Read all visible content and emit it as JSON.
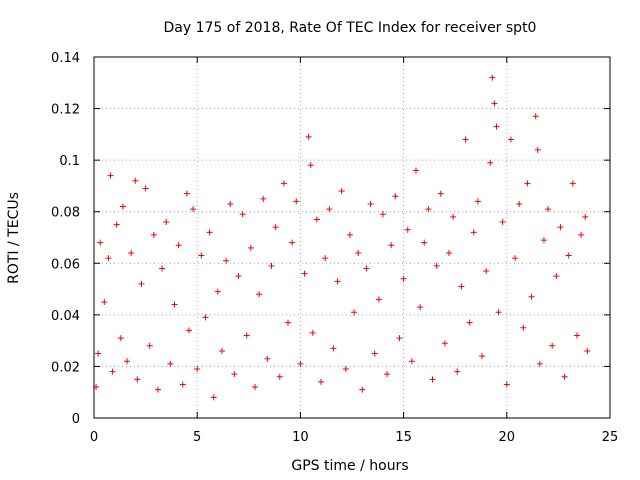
{
  "chart_data": {
    "type": "scatter",
    "title": "Day 175 of 2018, Rate Of TEC Index for receiver spt0",
    "xlabel": "GPS time / hours",
    "ylabel": "ROTI / TECUs",
    "xlim": [
      0,
      25
    ],
    "ylim": [
      0,
      0.14
    ],
    "xticks": [
      0,
      5,
      10,
      15,
      20,
      25
    ],
    "yticks": [
      0,
      0.02,
      0.04,
      0.06,
      0.08,
      0.1,
      0.12,
      0.14
    ],
    "xtick_labels": [
      "0",
      "5",
      "10",
      "15",
      "20",
      "25"
    ],
    "ytick_labels": [
      "0",
      "0.02",
      "0.04",
      "0.06",
      "0.08",
      "0.1",
      "0.12",
      "0.14"
    ],
    "grid": true,
    "marker": "+",
    "color": "#ff0000",
    "series": [
      {
        "name": "ROTI",
        "points": [
          [
            0.1,
            0.012
          ],
          [
            0.2,
            0.025
          ],
          [
            0.3,
            0.068
          ],
          [
            0.5,
            0.045
          ],
          [
            0.7,
            0.062
          ],
          [
            0.8,
            0.094
          ],
          [
            0.9,
            0.018
          ],
          [
            1.1,
            0.075
          ],
          [
            1.3,
            0.031
          ],
          [
            1.4,
            0.082
          ],
          [
            1.6,
            0.022
          ],
          [
            1.8,
            0.064
          ],
          [
            2.0,
            0.092
          ],
          [
            2.1,
            0.015
          ],
          [
            2.3,
            0.052
          ],
          [
            2.5,
            0.089
          ],
          [
            2.7,
            0.028
          ],
          [
            2.9,
            0.071
          ],
          [
            3.1,
            0.011
          ],
          [
            3.3,
            0.058
          ],
          [
            3.5,
            0.076
          ],
          [
            3.7,
            0.021
          ],
          [
            3.9,
            0.044
          ],
          [
            4.1,
            0.067
          ],
          [
            4.3,
            0.013
          ],
          [
            4.5,
            0.087
          ],
          [
            4.6,
            0.034
          ],
          [
            4.8,
            0.081
          ],
          [
            5.0,
            0.019
          ],
          [
            5.2,
            0.063
          ],
          [
            5.4,
            0.039
          ],
          [
            5.6,
            0.072
          ],
          [
            5.8,
            0.008
          ],
          [
            6.0,
            0.049
          ],
          [
            6.2,
            0.026
          ],
          [
            6.4,
            0.061
          ],
          [
            6.6,
            0.083
          ],
          [
            6.8,
            0.017
          ],
          [
            7.0,
            0.055
          ],
          [
            7.2,
            0.079
          ],
          [
            7.4,
            0.032
          ],
          [
            7.6,
            0.066
          ],
          [
            7.8,
            0.012
          ],
          [
            8.0,
            0.048
          ],
          [
            8.2,
            0.085
          ],
          [
            8.4,
            0.023
          ],
          [
            8.6,
            0.059
          ],
          [
            8.8,
            0.074
          ],
          [
            9.0,
            0.016
          ],
          [
            9.2,
            0.091
          ],
          [
            9.4,
            0.037
          ],
          [
            9.6,
            0.068
          ],
          [
            9.8,
            0.084
          ],
          [
            10.0,
            0.021
          ],
          [
            10.2,
            0.056
          ],
          [
            10.4,
            0.109
          ],
          [
            10.5,
            0.098
          ],
          [
            10.6,
            0.033
          ],
          [
            10.8,
            0.077
          ],
          [
            11.0,
            0.014
          ],
          [
            11.2,
            0.062
          ],
          [
            11.4,
            0.081
          ],
          [
            11.6,
            0.027
          ],
          [
            11.8,
            0.053
          ],
          [
            12.0,
            0.088
          ],
          [
            12.2,
            0.019
          ],
          [
            12.4,
            0.071
          ],
          [
            12.6,
            0.041
          ],
          [
            12.8,
            0.064
          ],
          [
            13.0,
            0.011
          ],
          [
            13.2,
            0.058
          ],
          [
            13.4,
            0.083
          ],
          [
            13.6,
            0.025
          ],
          [
            13.8,
            0.046
          ],
          [
            14.0,
            0.079
          ],
          [
            14.2,
            0.017
          ],
          [
            14.4,
            0.067
          ],
          [
            14.6,
            0.086
          ],
          [
            14.8,
            0.031
          ],
          [
            15.0,
            0.054
          ],
          [
            15.2,
            0.073
          ],
          [
            15.4,
            0.022
          ],
          [
            15.6,
            0.096
          ],
          [
            15.8,
            0.043
          ],
          [
            16.0,
            0.068
          ],
          [
            16.2,
            0.081
          ],
          [
            16.4,
            0.015
          ],
          [
            16.6,
            0.059
          ],
          [
            16.8,
            0.087
          ],
          [
            17.0,
            0.029
          ],
          [
            17.2,
            0.064
          ],
          [
            17.4,
            0.078
          ],
          [
            17.6,
            0.018
          ],
          [
            17.8,
            0.051
          ],
          [
            18.0,
            0.108
          ],
          [
            18.2,
            0.037
          ],
          [
            18.4,
            0.072
          ],
          [
            18.6,
            0.084
          ],
          [
            18.8,
            0.024
          ],
          [
            19.0,
            0.057
          ],
          [
            19.2,
            0.099
          ],
          [
            19.3,
            0.132
          ],
          [
            19.4,
            0.122
          ],
          [
            19.5,
            0.113
          ],
          [
            19.6,
            0.041
          ],
          [
            19.8,
            0.076
          ],
          [
            20.0,
            0.013
          ],
          [
            20.2,
            0.108
          ],
          [
            20.4,
            0.062
          ],
          [
            20.6,
            0.083
          ],
          [
            20.8,
            0.035
          ],
          [
            21.0,
            0.091
          ],
          [
            21.2,
            0.047
          ],
          [
            21.4,
            0.117
          ],
          [
            21.5,
            0.104
          ],
          [
            21.6,
            0.021
          ],
          [
            21.8,
            0.069
          ],
          [
            22.0,
            0.081
          ],
          [
            22.2,
            0.028
          ],
          [
            22.4,
            0.055
          ],
          [
            22.6,
            0.074
          ],
          [
            22.8,
            0.016
          ],
          [
            23.0,
            0.063
          ],
          [
            23.2,
            0.091
          ],
          [
            23.4,
            0.032
          ],
          [
            23.6,
            0.071
          ],
          [
            23.8,
            0.078
          ],
          [
            23.9,
            0.026
          ]
        ]
      }
    ]
  }
}
